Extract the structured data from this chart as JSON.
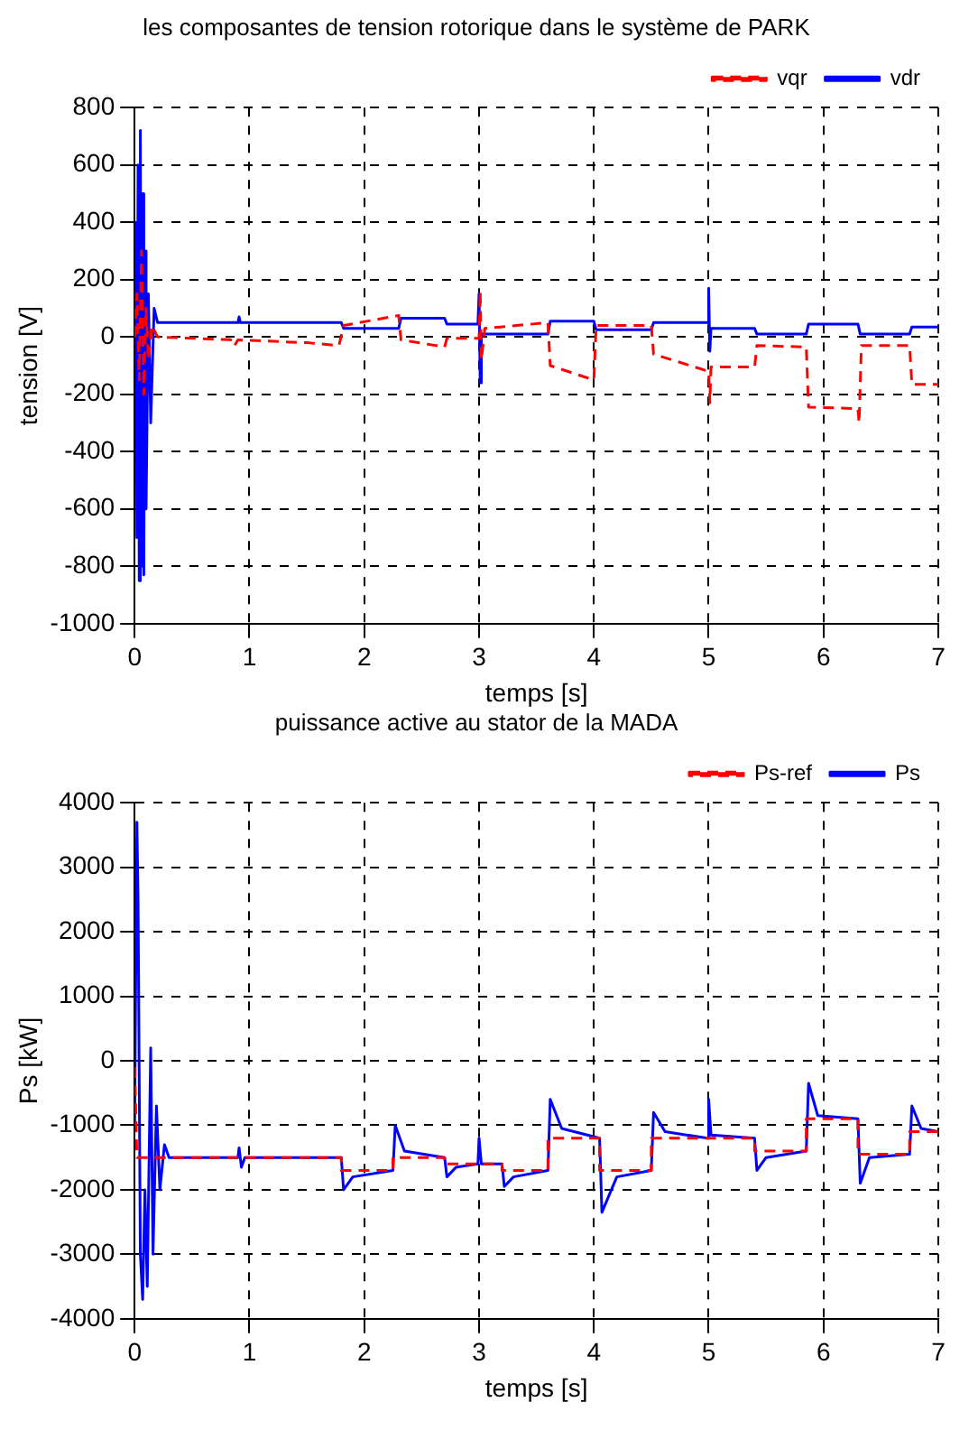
{
  "chart_data": [
    {
      "type": "line",
      "title": "les composantes de tension rotorique dans le système de PARK",
      "xlabel": "temps [s]",
      "ylabel": "tension [V]",
      "xlim": [
        0,
        7
      ],
      "xticks": [
        0,
        1,
        2,
        3,
        4,
        5,
        6,
        7
      ],
      "ylim": [
        -1000,
        800
      ],
      "yticks": [
        -1000,
        -800,
        -600,
        -400,
        -200,
        0,
        200,
        400,
        600,
        800
      ],
      "grid": true,
      "legend": "top right",
      "series": [
        {
          "name": "vdr",
          "color": "#0000ff",
          "line_style": "solid",
          "x": [
            0,
            0.01,
            0.02,
            0.03,
            0.04,
            0.05,
            0.06,
            0.07,
            0.08,
            0.09,
            0.1,
            0.12,
            0.14,
            0.17,
            0.2,
            0.9,
            0.91,
            0.92,
            1.8,
            1.82,
            2.3,
            2.32,
            2.7,
            2.72,
            2.99,
            3.0,
            3.01,
            3.02,
            3.6,
            3.62,
            4.0,
            4.02,
            4.5,
            4.52,
            4.99,
            5.0,
            5.01,
            5.02,
            5.4,
            5.42,
            5.85,
            5.87,
            6.3,
            6.32,
            6.75,
            6.77,
            7
          ],
          "values": [
            0,
            400,
            -700,
            600,
            -850,
            720,
            -800,
            500,
            -830,
            300,
            -600,
            150,
            -300,
            100,
            50,
            50,
            70,
            50,
            50,
            30,
            30,
            65,
            65,
            45,
            45,
            150,
            -160,
            10,
            10,
            55,
            55,
            25,
            25,
            50,
            50,
            170,
            -50,
            30,
            30,
            10,
            10,
            45,
            45,
            10,
            10,
            35,
            35
          ]
        },
        {
          "name": "vqr",
          "color": "#ff0000",
          "line_style": "dashed",
          "x": [
            0,
            0.02,
            0.04,
            0.06,
            0.08,
            0.1,
            0.12,
            0.15,
            0.2,
            0.85,
            0.87,
            0.9,
            1.5,
            1.78,
            1.82,
            2.3,
            2.32,
            2.7,
            2.72,
            3.0,
            3.01,
            3.02,
            3.05,
            3.6,
            3.62,
            4.0,
            4.02,
            4.5,
            4.52,
            5.0,
            5.01,
            5.02,
            5.4,
            5.42,
            5.85,
            5.87,
            6.3,
            6.31,
            6.33,
            6.75,
            6.77,
            7
          ],
          "values": [
            0,
            150,
            -150,
            300,
            -200,
            100,
            -80,
            40,
            0,
            -10,
            -30,
            -10,
            -20,
            -30,
            40,
            75,
            -10,
            -35,
            -5,
            -5,
            160,
            -80,
            30,
            50,
            -100,
            -150,
            40,
            40,
            -60,
            -120,
            -230,
            -105,
            -105,
            -30,
            -35,
            -245,
            -250,
            -300,
            -30,
            -30,
            -165,
            -165
          ]
        }
      ]
    },
    {
      "type": "line",
      "title": "puissance active au stator de la MADA",
      "xlabel": "temps [s]",
      "ylabel": "Ps [kW]",
      "xlim": [
        0,
        7
      ],
      "xticks": [
        0,
        1,
        2,
        3,
        4,
        5,
        6,
        7
      ],
      "ylim": [
        -4000,
        4000
      ],
      "yticks": [
        -4000,
        -3000,
        -2000,
        -1000,
        0,
        1000,
        2000,
        3000,
        4000
      ],
      "grid": true,
      "legend": "top right",
      "series": [
        {
          "name": "Ps",
          "color": "#0000ff",
          "line_style": "solid",
          "x": [
            0,
            0.02,
            0.03,
            0.05,
            0.07,
            0.09,
            0.11,
            0.14,
            0.16,
            0.19,
            0.22,
            0.26,
            0.3,
            0.9,
            0.91,
            0.93,
            0.96,
            1.8,
            1.82,
            1.9,
            2.25,
            2.27,
            2.35,
            2.7,
            2.72,
            2.8,
            2.99,
            3.0,
            3.02,
            3.2,
            3.22,
            3.3,
            3.6,
            3.62,
            3.72,
            4.05,
            4.07,
            4.2,
            4.5,
            4.52,
            4.62,
            4.99,
            5.0,
            5.02,
            5.4,
            5.42,
            5.5,
            5.85,
            5.87,
            5.95,
            6.3,
            6.32,
            6.4,
            6.75,
            6.77,
            6.85,
            7
          ],
          "values": [
            -1000,
            3700,
            2500,
            -3000,
            -3700,
            -2000,
            -3500,
            200,
            -3000,
            -700,
            -2000,
            -1300,
            -1500,
            -1500,
            -1350,
            -1650,
            -1500,
            -1500,
            -2000,
            -1800,
            -1700,
            -1000,
            -1400,
            -1500,
            -1800,
            -1650,
            -1600,
            -1200,
            -1600,
            -1600,
            -1950,
            -1800,
            -1700,
            -600,
            -1050,
            -1200,
            -2350,
            -1800,
            -1700,
            -800,
            -1100,
            -1200,
            -600,
            -1150,
            -1200,
            -1700,
            -1500,
            -1400,
            -350,
            -850,
            -900,
            -1900,
            -1500,
            -1450,
            -700,
            -1050,
            -1100
          ]
        },
        {
          "name": "Ps-ref",
          "color": "#ff0000",
          "line_style": "dashed",
          "x": [
            0,
            0.02,
            1.8,
            1.8,
            2.25,
            2.25,
            2.7,
            2.7,
            3.2,
            3.2,
            3.6,
            3.6,
            4.05,
            4.05,
            4.5,
            4.5,
            5.4,
            5.4,
            5.85,
            5.85,
            6.3,
            6.3,
            6.75,
            6.75,
            7
          ],
          "values": [
            -100,
            -1500,
            -1500,
            -1700,
            -1700,
            -1500,
            -1500,
            -1600,
            -1600,
            -1700,
            -1700,
            -1200,
            -1200,
            -1700,
            -1700,
            -1200,
            -1200,
            -1400,
            -1400,
            -900,
            -900,
            -1450,
            -1450,
            -1100,
            -1100
          ]
        }
      ]
    }
  ]
}
